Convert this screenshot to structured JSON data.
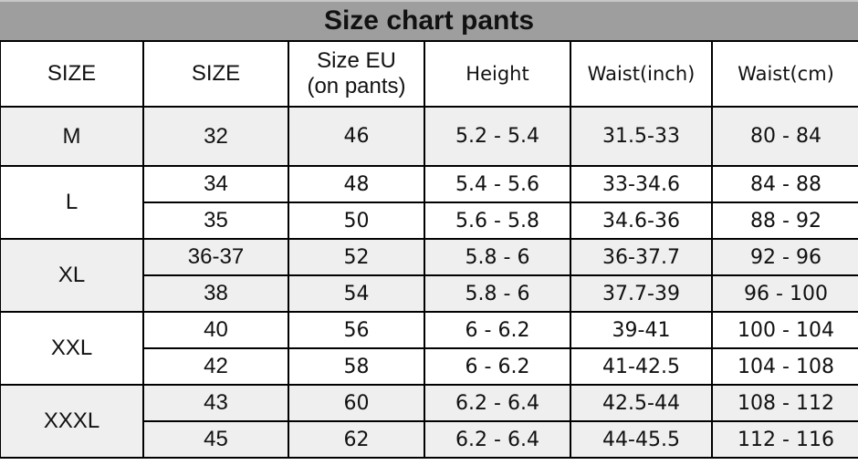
{
  "title": "Size chart pants",
  "headers": [
    "SIZE",
    "SIZE",
    "Size EU\n(on pants)",
    "Height",
    "Waist(inch)",
    "Waist(cm)"
  ],
  "header_eu_line1": "Size EU",
  "header_eu_line2": "(on pants)",
  "groups": [
    {
      "size": "M",
      "shaded": true,
      "rows": [
        [
          "32",
          "46",
          "5.2 - 5.4",
          "31.5-33",
          "80 - 84"
        ]
      ]
    },
    {
      "size": "L",
      "shaded": false,
      "rows": [
        [
          "34",
          "48",
          "5.4 - 5.6",
          "33-34.6",
          "84 - 88"
        ],
        [
          "35",
          "50",
          "5.6 - 5.8",
          "34.6-36",
          "88 - 92"
        ]
      ]
    },
    {
      "size": "XL",
      "shaded": true,
      "rows": [
        [
          "36-37",
          "52",
          "5.8 - 6",
          "36-37.7",
          "92 - 96"
        ],
        [
          "38",
          "54",
          "5.8 - 6",
          "37.7-39",
          "96 - 100"
        ]
      ]
    },
    {
      "size": "XXL",
      "shaded": false,
      "rows": [
        [
          "40",
          "56",
          "6 - 6.2",
          "39-41",
          "100 - 104"
        ],
        [
          "42",
          "58",
          "6 - 6.2",
          "41-42.5",
          "104 - 108"
        ]
      ]
    },
    {
      "size": "XXXL",
      "shaded": true,
      "rows": [
        [
          "43",
          "60",
          "6.2 - 6.4",
          "42.5-44",
          "108 - 112"
        ],
        [
          "45",
          "62",
          "6.2 - 6.4",
          "44-45.5",
          "112 - 116"
        ]
      ]
    }
  ],
  "colors": {
    "title_bg": "#9e9e9e",
    "shaded_row": "#efefef",
    "border": "#000000"
  }
}
